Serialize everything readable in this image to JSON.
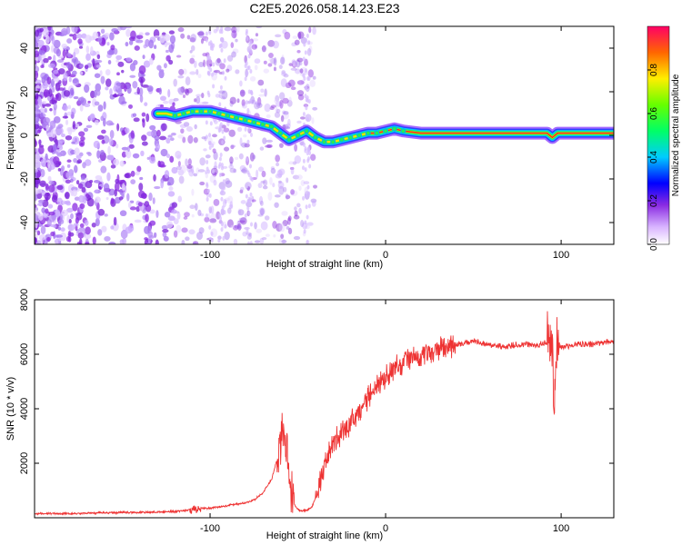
{
  "chart_data": [
    {
      "type": "heatmap",
      "title": "C2E5.2026.058.14.23.E23",
      "xlabel": "Height of straight line (km)",
      "ylabel": "Frequency (Hz)",
      "xlim": [
        -200,
        130
      ],
      "ylim": [
        -50,
        50
      ],
      "xticks": [
        -100,
        0,
        100
      ],
      "yticks": [
        -40,
        -20,
        0,
        20,
        40
      ],
      "ridge": {
        "x": [
          -130,
          -125,
          -120,
          -115,
          -110,
          -105,
          -100,
          -95,
          -90,
          -85,
          -80,
          -75,
          -70,
          -65,
          -60,
          -55,
          -50,
          -45,
          -40,
          -35,
          -30,
          -25,
          -20,
          -15,
          -10,
          -5,
          0,
          5,
          10,
          20,
          40,
          60,
          80,
          92,
          95,
          98,
          110,
          130
        ],
        "y": [
          10,
          10,
          9,
          10,
          11,
          11,
          11,
          10,
          9,
          8,
          7,
          6,
          5,
          4,
          1,
          -2,
          0,
          2,
          -1,
          -3,
          -3,
          -2,
          -1,
          0,
          1,
          1,
          2,
          3,
          2,
          1,
          1,
          1,
          1,
          1,
          -1,
          1,
          1,
          1
        ]
      },
      "colorbar": {
        "label": "Normalized spectral amplitude",
        "range": [
          0,
          1
        ],
        "ticks": [
          "0.0",
          "0.2",
          "0.4",
          "0.6",
          "0.8"
        ]
      }
    },
    {
      "type": "line",
      "xlabel": "Height of straight line (km)",
      "ylabel": "SNR (10 * v/v)",
      "xlim": [
        -200,
        130
      ],
      "ylim": [
        0,
        8000
      ],
      "xticks": [
        -100,
        0,
        100
      ],
      "yticks": [
        2000,
        4000,
        6000,
        8000
      ],
      "color": "#ee3333",
      "series": [
        {
          "name": "SNR",
          "x": [
            -200,
            -180,
            -160,
            -140,
            -130,
            -120,
            -110,
            -105,
            -100,
            -95,
            -90,
            -85,
            -80,
            -75,
            -70,
            -65,
            -62,
            -60,
            -58,
            -56,
            -55,
            -54,
            -52,
            -50,
            -48,
            -46,
            -44,
            -42,
            -40,
            -38,
            -36,
            -34,
            -32,
            -30,
            -28,
            -25,
            -22,
            -20,
            -18,
            -15,
            -12,
            -10,
            -8,
            -5,
            -2,
            0,
            5,
            10,
            15,
            20,
            25,
            30,
            35,
            40,
            45,
            50,
            55,
            60,
            65,
            70,
            75,
            80,
            85,
            90,
            93,
            95,
            96,
            97,
            98,
            100,
            105,
            110,
            115,
            120,
            125,
            130
          ],
          "y": [
            150,
            150,
            180,
            200,
            210,
            230,
            300,
            350,
            350,
            400,
            450,
            500,
            550,
            650,
            900,
            1400,
            2100,
            2800,
            3100,
            2600,
            1800,
            1000,
            500,
            300,
            250,
            260,
            300,
            400,
            700,
            1200,
            1600,
            2000,
            2400,
            2700,
            2900,
            3100,
            3300,
            3500,
            3700,
            3900,
            4200,
            4400,
            4600,
            4800,
            5000,
            5200,
            5500,
            5700,
            5900,
            6000,
            6100,
            6200,
            6250,
            6350,
            6400,
            6500,
            6400,
            6350,
            6300,
            6300,
            6350,
            6400,
            6300,
            6400,
            6500,
            6300,
            3700,
            6000,
            6400,
            6300,
            6300,
            6400,
            6350,
            6400,
            6450,
            6450
          ]
        }
      ]
    }
  ]
}
